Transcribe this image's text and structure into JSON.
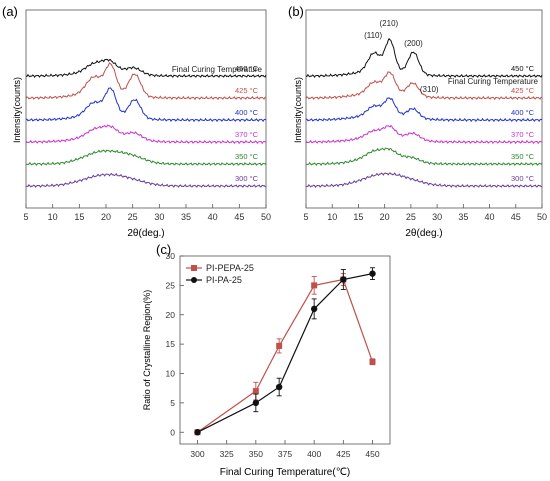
{
  "panels": {
    "a_label": "(a)",
    "b_label": "(b)",
    "c_label": "(c)"
  },
  "chart_data": [
    {
      "type": "line",
      "panel": "(a)",
      "xlabel": "2θ(deg.)",
      "ylabel": "Intensity(counts)",
      "xlim": [
        5,
        50
      ],
      "xticks": [
        5,
        10,
        15,
        20,
        25,
        30,
        35,
        40,
        45,
        50
      ],
      "legend_title": "Final Curing Temperature",
      "series": [
        {
          "name": "450 °C",
          "color": "#111111",
          "offset": 5,
          "peaks": [
            [
              17.8,
              0.45,
              1.6
            ],
            [
              20.7,
              0.55,
              1.3
            ],
            [
              25.2,
              0.35,
              1.4
            ],
            [
              19.5,
              0.25,
              4.5
            ]
          ]
        },
        {
          "name": "425 °C",
          "color": "#c0504d",
          "offset": 4,
          "peaks": [
            [
              17.8,
              0.9,
              1.5
            ],
            [
              20.9,
              1.5,
              1.0
            ],
            [
              25.4,
              1.2,
              1.1
            ],
            [
              19.5,
              0.3,
              4.5
            ]
          ]
        },
        {
          "name": "400 °C",
          "color": "#2233cc",
          "offset": 3,
          "peaks": [
            [
              17.8,
              0.7,
              1.5
            ],
            [
              20.9,
              1.4,
              1.0
            ],
            [
              25.4,
              1.0,
              1.1
            ],
            [
              19.5,
              0.3,
              4.5
            ]
          ]
        },
        {
          "name": "370 °C",
          "color": "#cc33cc",
          "offset": 2,
          "peaks": [
            [
              18.0,
              0.4,
              1.6
            ],
            [
              20.9,
              0.45,
              1.3
            ],
            [
              25.3,
              0.35,
              1.4
            ],
            [
              19.8,
              0.35,
              4.5
            ]
          ]
        },
        {
          "name": "350 °C",
          "color": "#2e8b2e",
          "offset": 1,
          "peaks": [
            [
              19.5,
              0.7,
              3.5
            ],
            [
              25.0,
              0.3,
              2.5
            ]
          ]
        },
        {
          "name": "300 °C",
          "color": "#6a3d9a",
          "offset": 0,
          "peaks": [
            [
              19.8,
              0.6,
              4.0
            ],
            [
              25.0,
              0.15,
              3.0
            ]
          ]
        }
      ]
    },
    {
      "type": "line",
      "panel": "(b)",
      "xlabel": "2θ(deg.)",
      "ylabel": "Intensity(counts)",
      "xlim": [
        5,
        50
      ],
      "xticks": [
        5,
        10,
        15,
        20,
        25,
        30,
        35,
        40,
        45,
        50
      ],
      "legend_title": "Final Curing Temperature",
      "annotations": [
        {
          "text": "(110)",
          "x": 17.8
        },
        {
          "text": "(210)",
          "x": 20.8
        },
        {
          "text": "(200)",
          "x": 25.5
        },
        {
          "text": "(310)",
          "x": 28.5
        }
      ],
      "series": [
        {
          "name": "450 °C",
          "color": "#111111",
          "offset": 5,
          "peaks": [
            [
              18.0,
              1.0,
              1.2
            ],
            [
              21.0,
              1.7,
              0.9
            ],
            [
              25.5,
              1.2,
              1.0
            ],
            [
              19.5,
              0.3,
              4.5
            ]
          ]
        },
        {
          "name": "425 °C",
          "color": "#c0504d",
          "offset": 4,
          "peaks": [
            [
              18.0,
              0.6,
              1.3
            ],
            [
              21.0,
              1.1,
              1.0
            ],
            [
              25.4,
              0.7,
              1.1
            ],
            [
              19.5,
              0.3,
              4.5
            ]
          ]
        },
        {
          "name": "400 °C",
          "color": "#2233cc",
          "offset": 3,
          "peaks": [
            [
              18.0,
              0.5,
              1.3
            ],
            [
              21.0,
              0.9,
              1.0
            ],
            [
              25.4,
              0.5,
              1.1
            ],
            [
              19.5,
              0.3,
              4.5
            ]
          ]
        },
        {
          "name": "370 °C",
          "color": "#cc33cc",
          "offset": 2,
          "peaks": [
            [
              18.0,
              0.35,
              1.5
            ],
            [
              21.0,
              0.55,
              1.1
            ],
            [
              25.4,
              0.35,
              1.3
            ],
            [
              19.7,
              0.3,
              4.5
            ]
          ]
        },
        {
          "name": "350 °C",
          "color": "#2e8b2e",
          "offset": 1,
          "peaks": [
            [
              18.0,
              0.3,
              1.6
            ],
            [
              21.0,
              0.35,
              1.3
            ],
            [
              25.2,
              0.2,
              1.5
            ],
            [
              19.6,
              0.45,
              4.0
            ]
          ]
        },
        {
          "name": "300 °C",
          "color": "#6a3d9a",
          "offset": 0,
          "peaks": [
            [
              19.8,
              0.65,
              3.8
            ],
            [
              25.0,
              0.15,
              3.0
            ]
          ]
        }
      ]
    },
    {
      "type": "line",
      "panel": "(c)",
      "xlabel": "Final Curing Temperature(℃)",
      "ylabel": "Ratio of Crystalline Region(%)",
      "xlim": [
        285,
        465
      ],
      "ylim": [
        -2,
        30
      ],
      "xticks": [
        300,
        325,
        350,
        375,
        400,
        425,
        450
      ],
      "yticks": [
        0,
        5,
        10,
        15,
        20,
        25,
        30
      ],
      "legend": "top-left",
      "series": [
        {
          "name": "PI-PEPA-25",
          "color": "#c0504d",
          "marker": "square",
          "x": [
            300,
            350,
            370,
            400,
            425,
            450
          ],
          "y": [
            0,
            7,
            14.7,
            25,
            26,
            12
          ],
          "err": [
            0.3,
            1.5,
            1.2,
            1.5,
            1.0,
            0.5
          ]
        },
        {
          "name": "PI-PA-25",
          "color": "#111111",
          "marker": "circle",
          "x": [
            300,
            350,
            370,
            400,
            425,
            450
          ],
          "y": [
            0,
            5,
            7.7,
            21,
            26,
            27
          ],
          "err": [
            0.3,
            1.5,
            1.5,
            1.7,
            1.7,
            1.0
          ]
        }
      ]
    }
  ]
}
